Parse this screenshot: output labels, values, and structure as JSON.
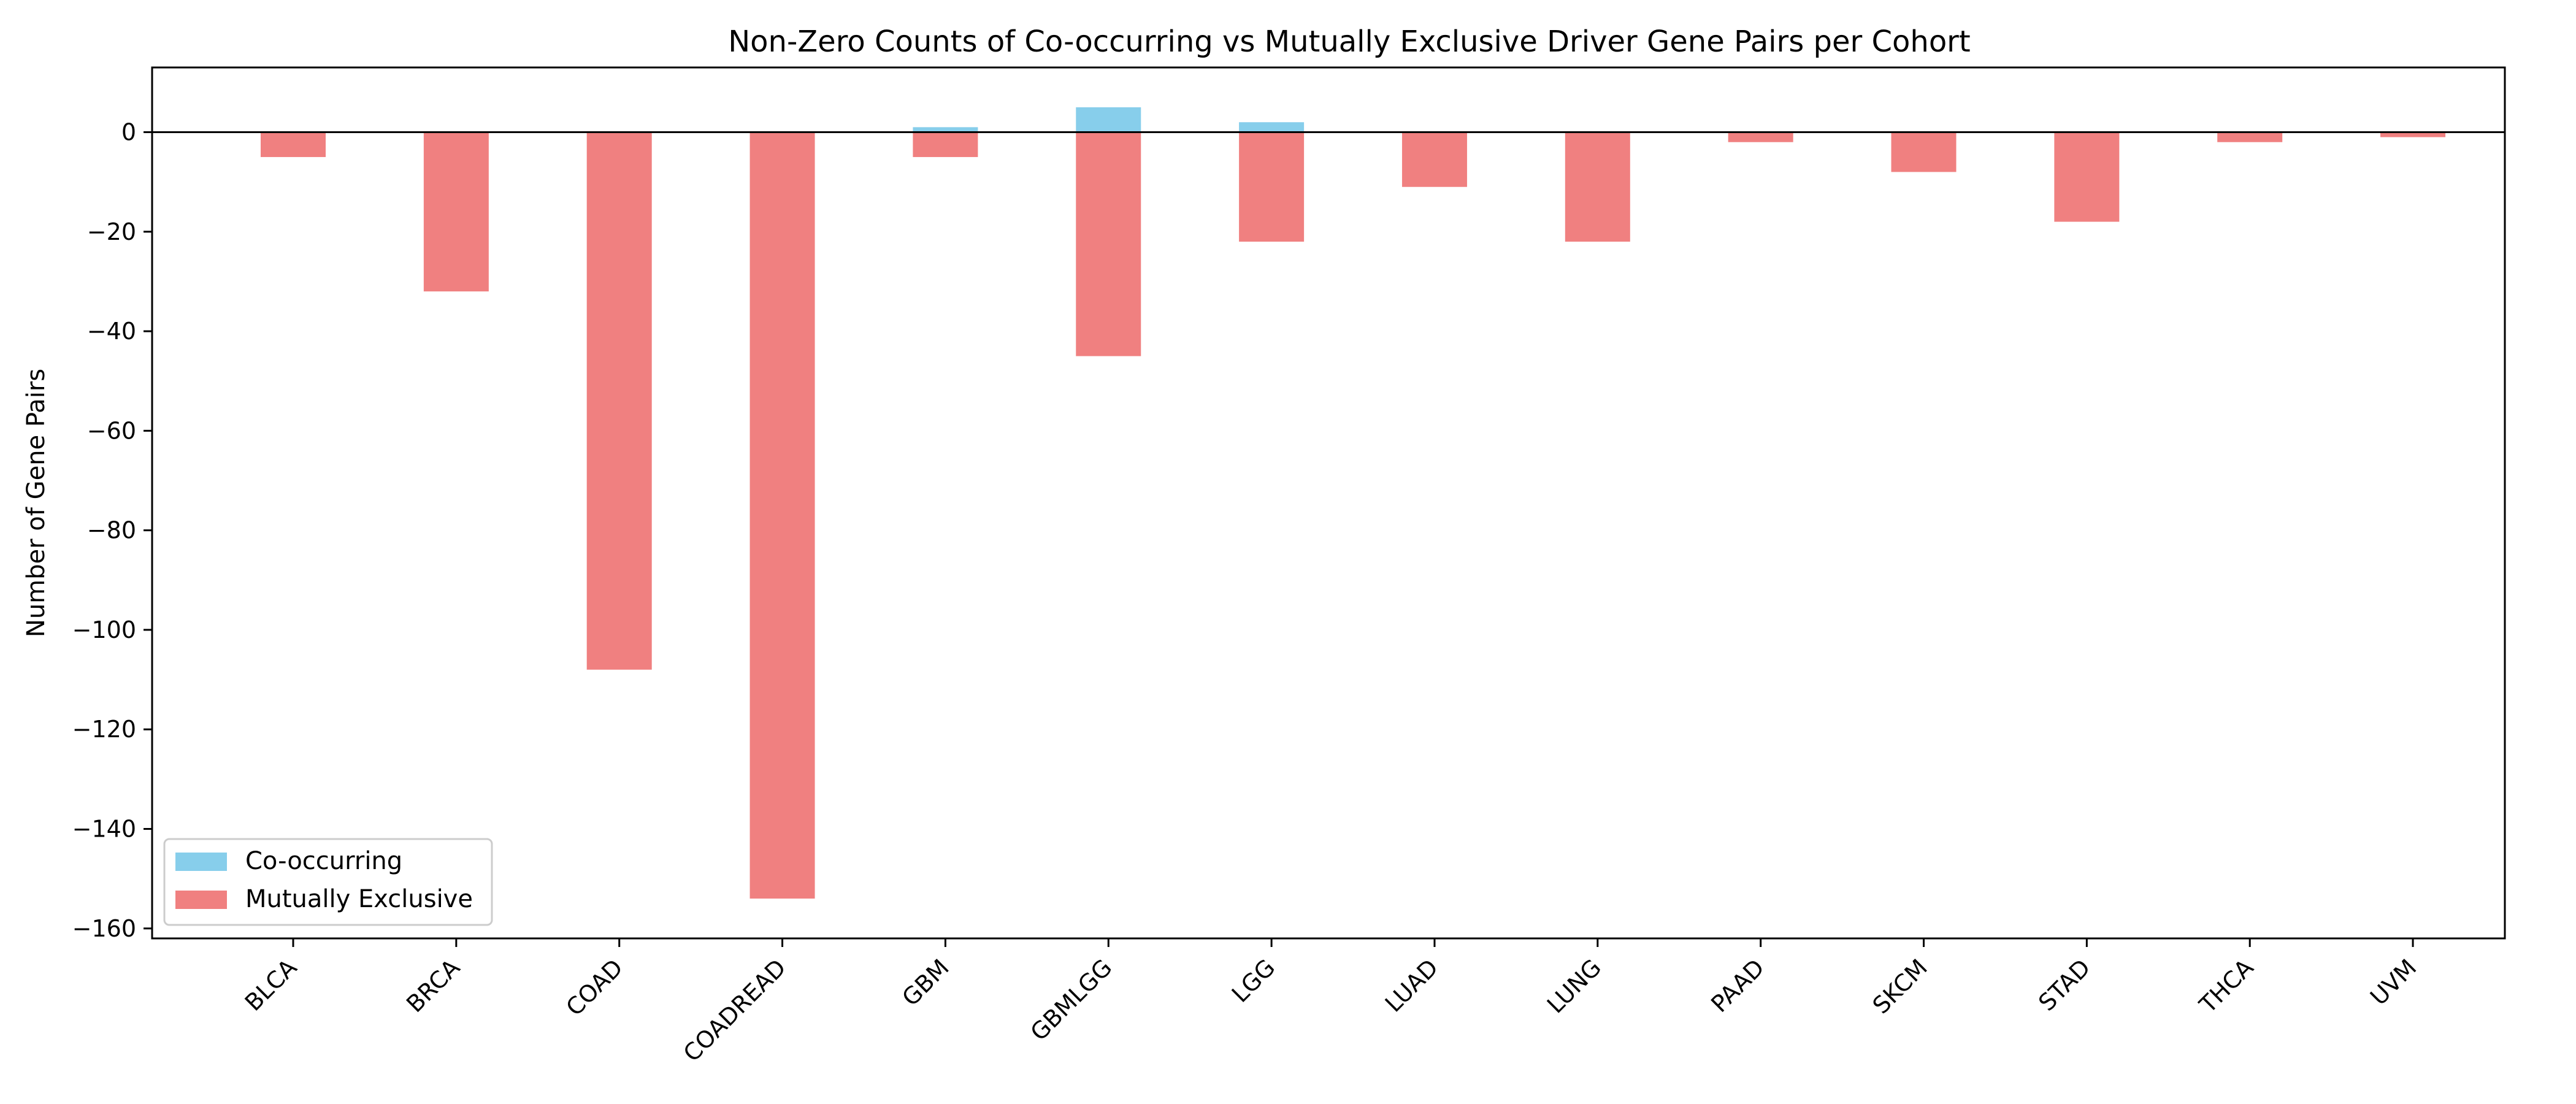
{
  "chart_data": {
    "type": "bar",
    "title": "Non-Zero Counts of Co-occurring vs Mutually Exclusive Driver Gene Pairs per Cohort",
    "xlabel": "",
    "ylabel": "Number of Gene Pairs",
    "categories": [
      "BLCA",
      "BRCA",
      "COAD",
      "COADREAD",
      "GBM",
      "GBMLGG",
      "LGG",
      "LUAD",
      "LUNG",
      "PAAD",
      "SKCM",
      "STAD",
      "THCA",
      "UVM"
    ],
    "series": [
      {
        "name": "Co-occurring",
        "color": "#87CEEB",
        "values": [
          0,
          0,
          0,
          0,
          1,
          5,
          2,
          0,
          0,
          0,
          0,
          0,
          0,
          0
        ]
      },
      {
        "name": "Mutually Exclusive",
        "color": "#F08080",
        "values": [
          -5,
          -32,
          -108,
          -154,
          -5,
          -45,
          -22,
          -11,
          -22,
          -2,
          -8,
          -18,
          -2,
          -1
        ]
      }
    ],
    "ylim": [
      -162,
      13
    ],
    "yticks": [
      0,
      -20,
      -40,
      -60,
      -80,
      -100,
      -120,
      -140,
      -160
    ],
    "ytick_labels": [
      "0",
      "−20",
      "−40",
      "−60",
      "−80",
      "−100",
      "−120",
      "−140",
      "−160"
    ],
    "zero_line": true,
    "grid": false,
    "legend_position": "lower-left"
  }
}
